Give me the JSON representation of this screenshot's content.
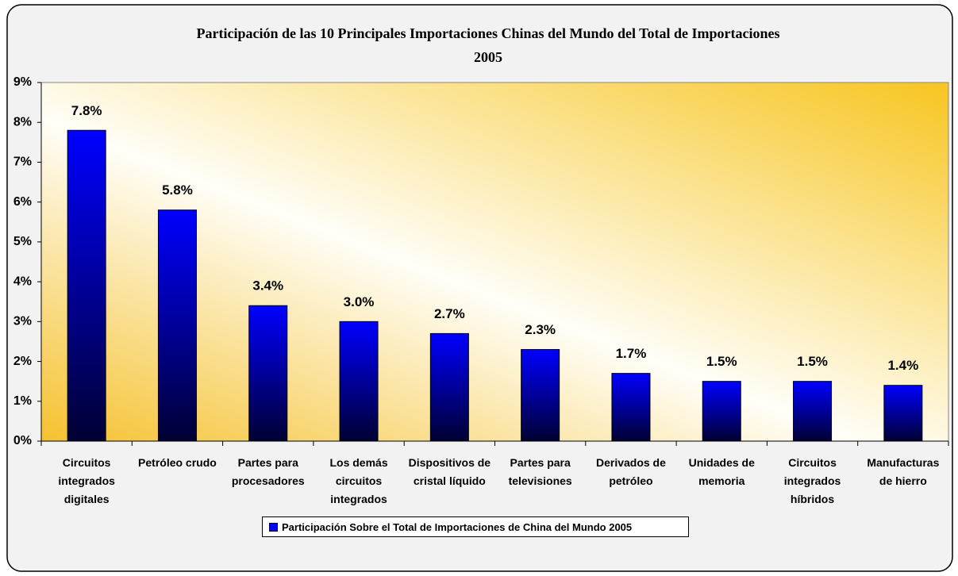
{
  "chart_data": {
    "type": "bar",
    "title": "Participación de las 10 Principales Importaciones Chinas del Mundo del Total de Importaciones",
    "subtitle": "2005",
    "categories": [
      "Circuitos integrados digitales",
      "Petróleo crudo",
      "Partes para procesadores",
      "Los demás circuitos integrados",
      "Dispositivos de cristal líquido",
      "Partes para televisiones",
      "Derivados de petróleo",
      "Unidades de memoria",
      "Circuitos integrados híbridos",
      "Manufacturas de hierro"
    ],
    "series": [
      {
        "name": "Participación Sobre el Total de Importaciones de China del Mundo 2005",
        "color": "#0000ff",
        "values": [
          7.8,
          5.8,
          3.4,
          3.0,
          2.7,
          2.3,
          1.7,
          1.5,
          1.5,
          1.4
        ],
        "value_labels": [
          "7.8%",
          "5.8%",
          "3.4%",
          "3.0%",
          "2.7%",
          "2.3%",
          "1.7%",
          "1.5%",
          "1.5%",
          "1.4%"
        ]
      }
    ],
    "ylim": [
      0,
      9
    ],
    "yticks": [
      {
        "value": 0,
        "label": "0%"
      },
      {
        "value": 1,
        "label": "1%"
      },
      {
        "value": 2,
        "label": "2%"
      },
      {
        "value": 3,
        "label": "3%"
      },
      {
        "value": 4,
        "label": "4%"
      },
      {
        "value": 5,
        "label": "5%"
      },
      {
        "value": 6,
        "label": "6%"
      },
      {
        "value": 7,
        "label": "7%"
      },
      {
        "value": 8,
        "label": "8%"
      },
      {
        "value": 9,
        "label": "9%"
      }
    ],
    "legend": "bottom"
  }
}
